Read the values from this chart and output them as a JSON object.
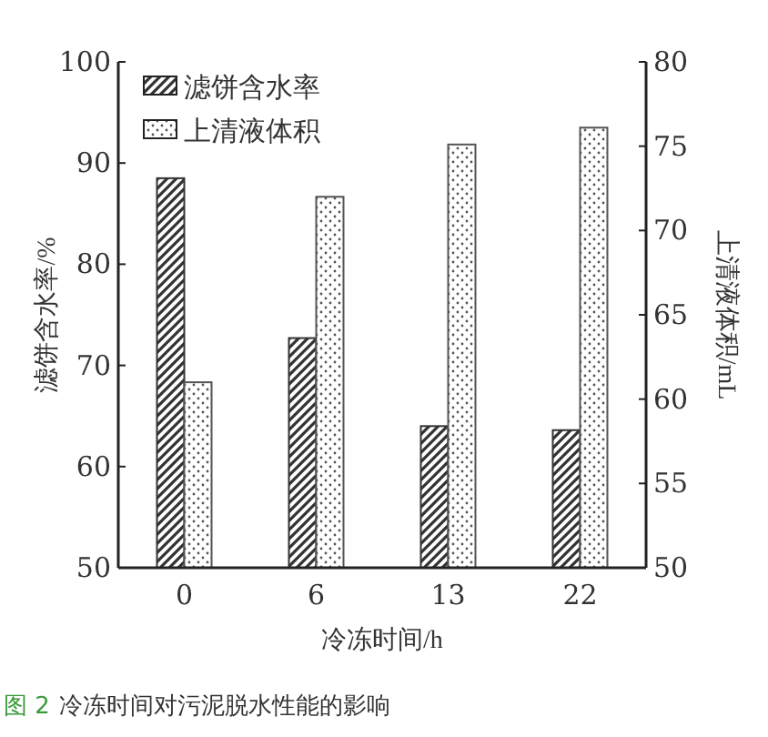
{
  "chart_data": {
    "type": "bar",
    "categories": [
      "0",
      "6",
      "13",
      "22"
    ],
    "series": [
      {
        "name": "滤饼含水率",
        "color": "#333333",
        "values": [
          88.5,
          72.7,
          64,
          63.6
        ]
      },
      {
        "name": "上清液体积",
        "color": "#555555",
        "values": [
          61,
          72,
          75.1,
          76.1
        ],
        "axis": "y2"
      }
    ],
    "ylim": [
      50,
      100
    ],
    "yticks": [
      50,
      60,
      70,
      80,
      90,
      100
    ],
    "y2lim": [
      50,
      80
    ],
    "y2ticks": [
      50,
      55,
      60,
      65,
      70,
      75,
      80
    ],
    "xlabel": "冷冻时间/h",
    "ylabel": "滤饼含水率/%",
    "y2label": "上清液体积/mL",
    "legend": "top left",
    "annotations": [
      "图 2",
      "冷冻时间对污泥脱水性能的影响"
    ]
  }
}
